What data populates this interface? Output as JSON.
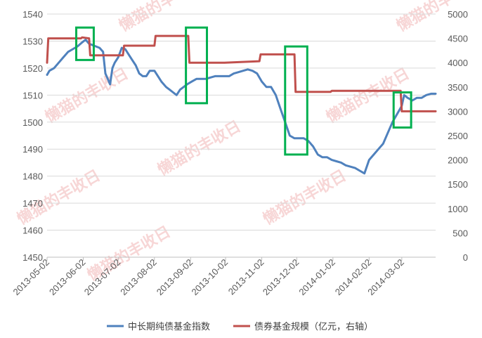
{
  "chart_data": {
    "type": "line",
    "title": "",
    "x_tick_labels": [
      "2013-05-02",
      "2013-06-02",
      "2013-07-02",
      "2013-08-02",
      "2013-09-02",
      "2013-10-02",
      "2013-11-02",
      "2013-12-02",
      "2014-01-02",
      "2014-02-02",
      "2014-03-02"
    ],
    "x_range": [
      "2013-05-02",
      "2014-03-31"
    ],
    "left_axis": {
      "min": 1450,
      "max": 1540,
      "step": 10,
      "tick_labels": [
        "1450",
        "1460",
        "1470",
        "1480",
        "1490",
        "1500",
        "1510",
        "1520",
        "1530",
        "1540"
      ]
    },
    "right_axis": {
      "min": 0,
      "max": 5000,
      "step": 500,
      "tick_labels": [
        "0",
        "500",
        "1000",
        "1500",
        "2000",
        "2500",
        "3000",
        "3500",
        "4000",
        "4500",
        "5000"
      ]
    },
    "grid": "horizontal",
    "legend_position": "bottom",
    "series": [
      {
        "name": "中长期纯债基金指数",
        "axis": "left",
        "color": "#4f81bd",
        "points": [
          [
            "2013-05-02",
            1517.5
          ],
          [
            "2013-05-04",
            1519
          ],
          [
            "2013-05-08",
            1520
          ],
          [
            "2013-05-12",
            1522
          ],
          [
            "2013-05-16",
            1524
          ],
          [
            "2013-05-20",
            1526
          ],
          [
            "2013-05-24",
            1527
          ],
          [
            "2013-05-28",
            1528
          ],
          [
            "2013-06-01",
            1529.5
          ],
          [
            "2013-06-04",
            1530.5
          ],
          [
            "2013-06-07",
            1529
          ],
          [
            "2013-06-10",
            1528.5
          ],
          [
            "2013-06-13",
            1528
          ],
          [
            "2013-06-16",
            1527.5
          ],
          [
            "2013-06-19",
            1526
          ],
          [
            "2013-06-21",
            1518
          ],
          [
            "2013-06-23",
            1516
          ],
          [
            "2013-06-25",
            1514
          ],
          [
            "2013-06-27",
            1520
          ],
          [
            "2013-06-29",
            1522
          ],
          [
            "2013-07-02",
            1524
          ],
          [
            "2013-07-05",
            1527.5
          ],
          [
            "2013-07-08",
            1527
          ],
          [
            "2013-07-11",
            1525
          ],
          [
            "2013-07-14",
            1523
          ],
          [
            "2013-07-17",
            1521
          ],
          [
            "2013-07-20",
            1518
          ],
          [
            "2013-07-23",
            1517
          ],
          [
            "2013-07-26",
            1517
          ],
          [
            "2013-07-29",
            1519
          ],
          [
            "2013-08-02",
            1519
          ],
          [
            "2013-08-05",
            1517
          ],
          [
            "2013-08-08",
            1515
          ],
          [
            "2013-08-12",
            1513
          ],
          [
            "2013-08-15",
            1512
          ],
          [
            "2013-08-18",
            1511
          ],
          [
            "2013-08-21",
            1510
          ],
          [
            "2013-08-24",
            1512
          ],
          [
            "2013-08-27",
            1513
          ],
          [
            "2013-08-30",
            1514
          ],
          [
            "2013-09-03",
            1515
          ],
          [
            "2013-09-07",
            1516
          ],
          [
            "2013-09-11",
            1516
          ],
          [
            "2013-09-15",
            1516
          ],
          [
            "2013-09-19",
            1516.5
          ],
          [
            "2013-09-23",
            1517
          ],
          [
            "2013-09-27",
            1517
          ],
          [
            "2013-10-01",
            1517
          ],
          [
            "2013-10-05",
            1517
          ],
          [
            "2013-10-09",
            1518
          ],
          [
            "2013-10-13",
            1518.5
          ],
          [
            "2013-10-17",
            1519
          ],
          [
            "2013-10-21",
            1519.5
          ],
          [
            "2013-10-25",
            1519
          ],
          [
            "2013-10-29",
            1518
          ],
          [
            "2013-11-02",
            1515
          ],
          [
            "2013-11-06",
            1513
          ],
          [
            "2013-11-10",
            1513
          ],
          [
            "2013-11-14",
            1510
          ],
          [
            "2013-11-18",
            1505
          ],
          [
            "2013-11-22",
            1500
          ],
          [
            "2013-11-26",
            1495
          ],
          [
            "2013-11-30",
            1494
          ],
          [
            "2013-12-04",
            1494
          ],
          [
            "2013-12-08",
            1494
          ],
          [
            "2013-12-12",
            1493
          ],
          [
            "2013-12-16",
            1491
          ],
          [
            "2013-12-20",
            1488
          ],
          [
            "2013-12-24",
            1487
          ],
          [
            "2013-12-28",
            1487
          ],
          [
            "2014-01-01",
            1486
          ],
          [
            "2014-01-05",
            1485.5
          ],
          [
            "2014-01-09",
            1485
          ],
          [
            "2014-01-13",
            1484
          ],
          [
            "2014-01-17",
            1483.5
          ],
          [
            "2014-01-21",
            1483
          ],
          [
            "2014-01-25",
            1482
          ],
          [
            "2014-01-29",
            1481
          ],
          [
            "2014-02-02",
            1486
          ],
          [
            "2014-02-06",
            1488
          ],
          [
            "2014-02-10",
            1490
          ],
          [
            "2014-02-14",
            1492
          ],
          [
            "2014-02-18",
            1496
          ],
          [
            "2014-02-22",
            1500
          ],
          [
            "2014-02-26",
            1503
          ],
          [
            "2014-03-02",
            1506
          ],
          [
            "2014-03-04",
            1510
          ],
          [
            "2014-03-07",
            1509
          ],
          [
            "2014-03-11",
            1508
          ],
          [
            "2014-03-15",
            1509
          ],
          [
            "2014-03-19",
            1509
          ],
          [
            "2014-03-23",
            1510
          ],
          [
            "2014-03-27",
            1510.5
          ],
          [
            "2014-03-31",
            1510.5
          ]
        ]
      },
      {
        "name": "债券基金规模（亿元，右轴）",
        "axis": "right",
        "color": "#c0504d",
        "points": [
          [
            "2013-05-02",
            4000
          ],
          [
            "2013-05-03",
            4500
          ],
          [
            "2013-05-31",
            4500
          ],
          [
            "2013-06-01",
            4520
          ],
          [
            "2013-06-07",
            4500
          ],
          [
            "2013-06-08",
            4150
          ],
          [
            "2013-07-06",
            4150
          ],
          [
            "2013-07-07",
            4350
          ],
          [
            "2013-08-02",
            4350
          ],
          [
            "2013-08-03",
            4550
          ],
          [
            "2013-08-31",
            4550
          ],
          [
            "2013-09-01",
            4000
          ],
          [
            "2013-09-30",
            4000
          ],
          [
            "2013-10-01",
            4000
          ],
          [
            "2013-10-31",
            4030
          ],
          [
            "2013-11-01",
            4170
          ],
          [
            "2013-11-30",
            4170
          ],
          [
            "2013-12-01",
            3400
          ],
          [
            "2013-12-31",
            3400
          ],
          [
            "2014-01-01",
            3420
          ],
          [
            "2014-03-01",
            3420
          ],
          [
            "2014-03-02",
            3000
          ],
          [
            "2014-03-31",
            3000
          ]
        ]
      }
    ],
    "highlight_boxes": [
      {
        "x_start": "2013-05-27",
        "x_end": "2013-06-11",
        "y_top": 1535,
        "y_bottom": 1523,
        "color": "#00b050"
      },
      {
        "x_start": "2013-08-29",
        "x_end": "2013-09-16",
        "y_top": 1535,
        "y_bottom": 1507,
        "color": "#00b050"
      },
      {
        "x_start": "2013-11-22",
        "x_end": "2013-12-11",
        "y_top": 1528,
        "y_bottom": 1488,
        "color": "#00b050"
      },
      {
        "x_start": "2014-02-23",
        "x_end": "2014-03-10",
        "y_top": 1511,
        "y_bottom": 1498,
        "color": "#00b050"
      }
    ],
    "watermarks": [
      "懒猫的丰收日",
      "懒猫的丰收日",
      "懒猫的丰收日",
      "懒猫的丰收日",
      "懒猫的丰收日",
      "懒猫的丰收日",
      "懒猫的丰收日",
      "懒猫的丰收日"
    ]
  }
}
